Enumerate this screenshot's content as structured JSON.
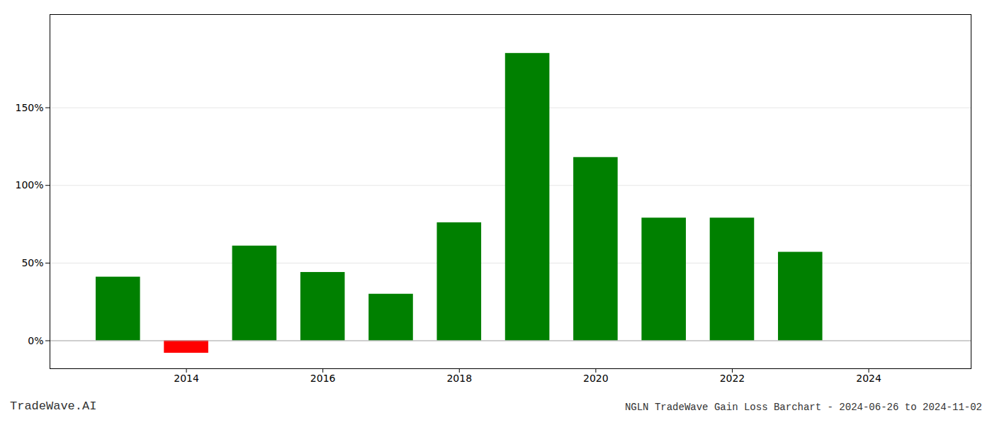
{
  "chart_data": {
    "type": "bar",
    "title": "NGLN TradeWave Gain Loss Barchart - 2024-06-26 to 2024-11-02",
    "annotations": [
      "TradeWave.AI"
    ],
    "x": [
      2013,
      2014,
      2015,
      2016,
      2017,
      2018,
      2019,
      2020,
      2021,
      2022,
      2023
    ],
    "values": [
      41,
      -8,
      61,
      44,
      30,
      76,
      185,
      118,
      79,
      79,
      57
    ],
    "colors": [
      "#008000",
      "#ff0000",
      "#008000",
      "#008000",
      "#008000",
      "#008000",
      "#008000",
      "#008000",
      "#008000",
      "#008000",
      "#008000"
    ],
    "xlim": [
      2012.0,
      2025.5
    ],
    "xticks": [
      2014,
      2016,
      2018,
      2020,
      2022,
      2024
    ],
    "ylim": [
      -18,
      210
    ],
    "yticks": [
      {
        "value": 0,
        "label": "0%"
      },
      {
        "value": 50,
        "label": "50%"
      },
      {
        "value": 100,
        "label": "100%"
      },
      {
        "value": 150,
        "label": "150%"
      }
    ],
    "grid": true
  }
}
